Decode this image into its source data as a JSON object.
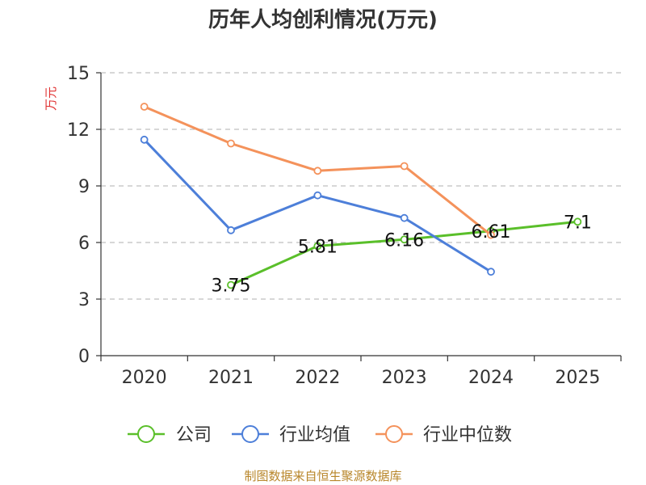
{
  "chart_data": {
    "type": "line",
    "title": "历年人均创利情况(万元)",
    "ylabel": "万元",
    "xlabel": "",
    "categories": [
      "2020",
      "2021",
      "2022",
      "2023",
      "2024",
      "2025"
    ],
    "ylim": [
      0,
      15
    ],
    "yticks": [
      0,
      3,
      6,
      9,
      12,
      15
    ],
    "grid": true,
    "legend_position": "bottom",
    "series": [
      {
        "name": "公司",
        "color": "#5abf2a",
        "values": [
          null,
          3.75,
          5.81,
          6.16,
          6.61,
          7.1
        ],
        "labels": [
          null,
          "3.75",
          "5.81",
          "6.16",
          "6.61",
          "7.1"
        ]
      },
      {
        "name": "行业均值",
        "color": "#4d7fd9",
        "values": [
          11.45,
          6.65,
          8.5,
          7.3,
          4.45,
          null
        ]
      },
      {
        "name": "行业中位数",
        "color": "#f4925b",
        "values": [
          13.2,
          11.25,
          9.8,
          10.05,
          6.4,
          null
        ]
      }
    ]
  },
  "source": "制图数据来自恒生聚源数据库"
}
